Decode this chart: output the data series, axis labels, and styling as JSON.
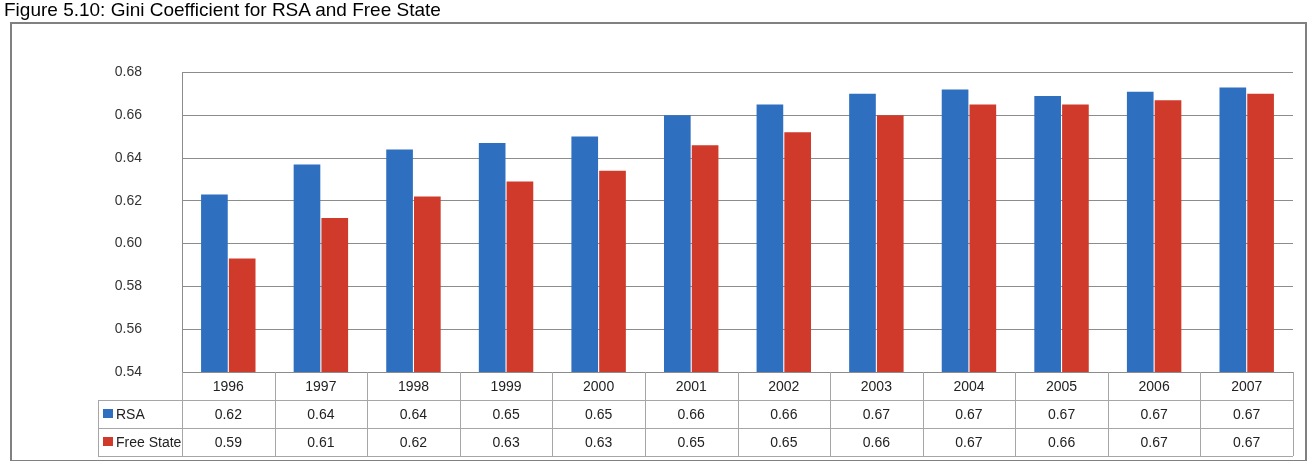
{
  "chart_data": {
    "type": "bar",
    "title": "Figure 5.10: Gini Coefficient for RSA and Free State",
    "categories": [
      "1996",
      "1997",
      "1998",
      "1999",
      "2000",
      "2001",
      "2002",
      "2003",
      "2004",
      "2005",
      "2006",
      "2007"
    ],
    "series": [
      {
        "name": "RSA",
        "color": "#2e6fc0",
        "values": [
          0.623,
          0.637,
          0.644,
          0.647,
          0.65,
          0.66,
          0.665,
          0.67,
          0.672,
          0.669,
          0.671,
          0.673
        ],
        "value_labels": [
          "0.62",
          "0.64",
          "0.64",
          "0.65",
          "0.65",
          "0.66",
          "0.66",
          "0.67",
          "0.67",
          "0.67",
          "0.67",
          "0.67"
        ]
      },
      {
        "name": "Free State",
        "color": "#d03a2a",
        "values": [
          0.593,
          0.612,
          0.622,
          0.629,
          0.634,
          0.646,
          0.652,
          0.66,
          0.665,
          0.665,
          0.667,
          0.67
        ],
        "value_labels": [
          "0.59",
          "0.61",
          "0.62",
          "0.63",
          "0.63",
          "0.65",
          "0.65",
          "0.66",
          "0.67",
          "0.66",
          "0.67",
          "0.67"
        ]
      }
    ],
    "ylim": [
      0.54,
      0.68
    ],
    "yticks": [
      0.54,
      0.56,
      0.58,
      {
        "value": 0.6,
        "label": "0.60"
      },
      0.62,
      0.64,
      0.66,
      0.68
    ],
    "grid": "y",
    "legend": "bottom left"
  }
}
